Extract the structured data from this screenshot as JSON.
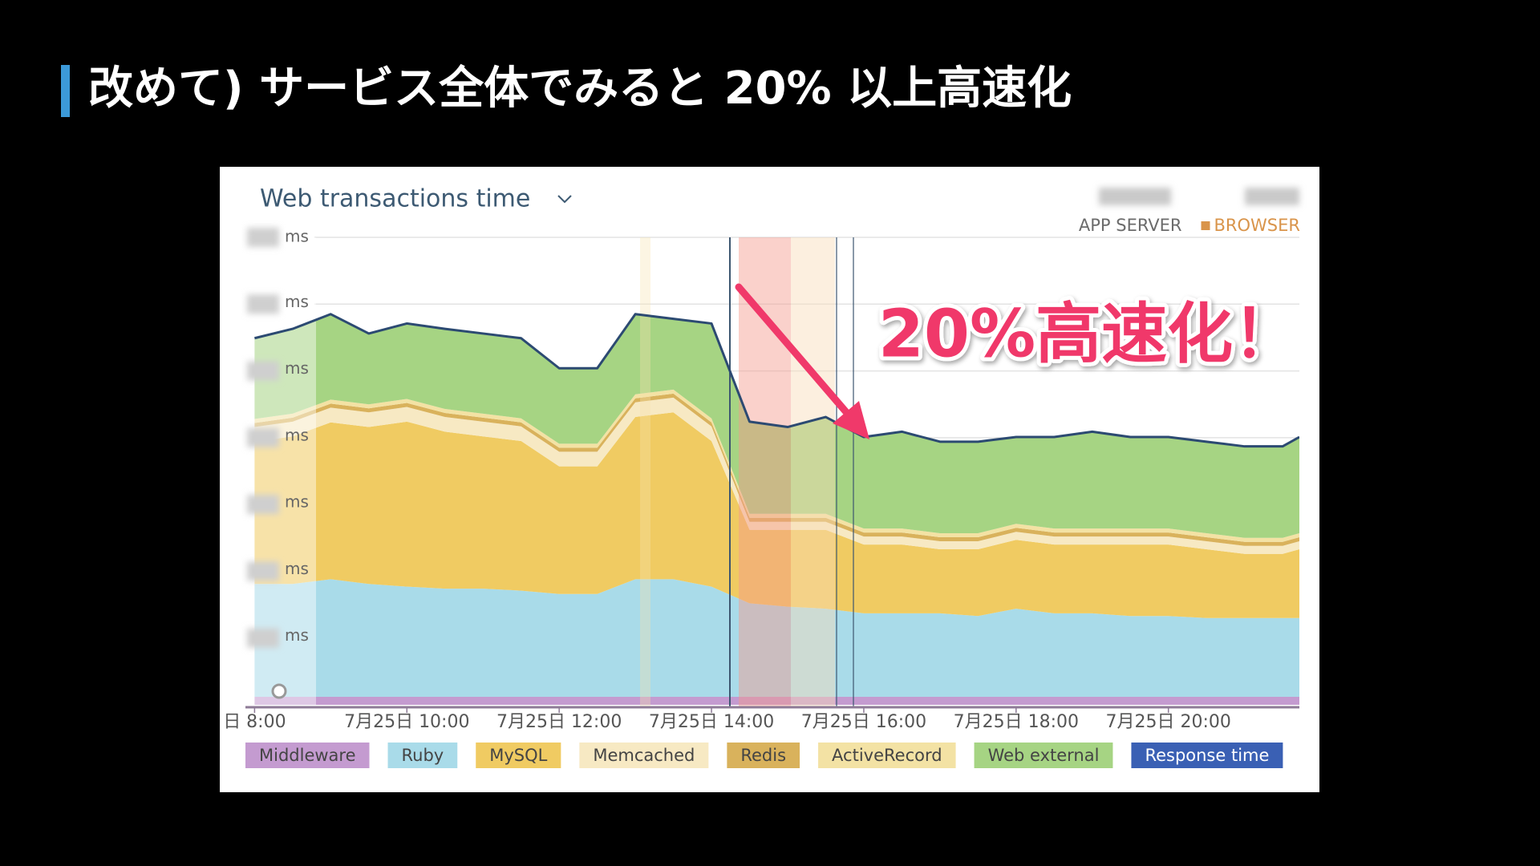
{
  "slide_title": "改めて) サービス全体でみると 20% 以上高速化",
  "chart_data": {
    "type": "stacked-area",
    "title": "Web transactions time",
    "header_labels": [
      "APP SERVER",
      "BROWSER"
    ],
    "header_colors": [
      "#6b6b6b",
      "#d9944a"
    ],
    "annotation": "20%高速化！",
    "annotation_color": "#f0396a",
    "x": [
      8,
      8.5,
      9,
      9.5,
      10,
      10.5,
      11,
      11.5,
      12,
      12.5,
      13,
      13.5,
      14,
      14.5,
      15,
      15.5,
      16,
      16.5,
      17,
      17.5,
      18,
      18.5,
      19,
      19.5,
      20,
      20.5,
      21,
      21.5,
      21.72
    ],
    "xlim": [
      7.88,
      21.72
    ],
    "xticks": [
      {
        "value": 8,
        "label": "日 8:00"
      },
      {
        "value": 10,
        "label": "7月25日 10:00"
      },
      {
        "value": 12,
        "label": "7月25日 12:00"
      },
      {
        "value": 14,
        "label": "7月25日 14:00"
      },
      {
        "value": 16,
        "label": "7月25日 16:00"
      },
      {
        "value": 18,
        "label": "7月25日 18:00"
      },
      {
        "value": 20,
        "label": "7月25日 20:00"
      }
    ],
    "ylim": [
      0,
      7
    ],
    "yticks": [
      {
        "value": 1,
        "label": "ms"
      },
      {
        "value": 2,
        "label": "ms"
      },
      {
        "value": 3,
        "label": "ms"
      },
      {
        "value": 4,
        "label": "ms"
      },
      {
        "value": 5,
        "label": "ms"
      },
      {
        "value": 6,
        "label": "ms"
      },
      {
        "value": 7,
        "label": "ms"
      }
    ],
    "grid": true,
    "series": [
      {
        "name": "Middleware",
        "type": "area",
        "color": "#c49bd0",
        "values": [
          0.12,
          0.12,
          0.12,
          0.12,
          0.12,
          0.12,
          0.12,
          0.12,
          0.12,
          0.12,
          0.12,
          0.12,
          0.12,
          0.12,
          0.12,
          0.12,
          0.12,
          0.12,
          0.12,
          0.12,
          0.12,
          0.12,
          0.12,
          0.12,
          0.12,
          0.12,
          0.12,
          0.12,
          0.12
        ]
      },
      {
        "name": "Ruby",
        "type": "area",
        "color": "#a9dbe9",
        "values": [
          1.69,
          1.69,
          1.76,
          1.69,
          1.65,
          1.62,
          1.62,
          1.59,
          1.54,
          1.54,
          1.76,
          1.76,
          1.65,
          1.4,
          1.35,
          1.32,
          1.25,
          1.25,
          1.25,
          1.21,
          1.32,
          1.25,
          1.25,
          1.21,
          1.21,
          1.18,
          1.18,
          1.18,
          1.18
        ]
      },
      {
        "name": "MySQL",
        "type": "area",
        "color": "#f0cb62",
        "values": [
          2.13,
          2.21,
          2.35,
          2.35,
          2.47,
          2.35,
          2.28,
          2.24,
          1.91,
          1.91,
          2.43,
          2.5,
          2.18,
          1.1,
          1.15,
          1.18,
          1.03,
          1.03,
          0.96,
          1.0,
          1.03,
          1.03,
          1.03,
          1.07,
          1.07,
          1.03,
          0.96,
          0.96,
          1.03
        ]
      },
      {
        "name": "Memcached",
        "type": "area",
        "color": "#f7e9c3",
        "values": [
          0.22,
          0.22,
          0.22,
          0.22,
          0.22,
          0.22,
          0.22,
          0.22,
          0.22,
          0.22,
          0.22,
          0.22,
          0.22,
          0.12,
          0.12,
          0.12,
          0.12,
          0.12,
          0.12,
          0.12,
          0.12,
          0.12,
          0.12,
          0.12,
          0.12,
          0.12,
          0.12,
          0.12,
          0.12
        ]
      },
      {
        "name": "Redis",
        "type": "area",
        "color": "#d9b25c",
        "values": [
          0.06,
          0.06,
          0.06,
          0.06,
          0.06,
          0.06,
          0.06,
          0.06,
          0.06,
          0.06,
          0.06,
          0.06,
          0.06,
          0.06,
          0.06,
          0.06,
          0.06,
          0.06,
          0.06,
          0.06,
          0.06,
          0.06,
          0.06,
          0.06,
          0.06,
          0.06,
          0.06,
          0.06,
          0.06
        ]
      },
      {
        "name": "ActiveRecord",
        "type": "area",
        "color": "#f3e2a4",
        "values": [
          0.06,
          0.06,
          0.06,
          0.06,
          0.06,
          0.06,
          0.06,
          0.06,
          0.06,
          0.06,
          0.06,
          0.06,
          0.06,
          0.06,
          0.06,
          0.06,
          0.06,
          0.06,
          0.06,
          0.06,
          0.06,
          0.06,
          0.06,
          0.06,
          0.06,
          0.06,
          0.06,
          0.06,
          0.06
        ]
      },
      {
        "name": "Web external",
        "type": "area",
        "color": "#a6d483",
        "values": [
          1.21,
          1.27,
          1.28,
          1.06,
          1.13,
          1.2,
          1.2,
          1.2,
          1.13,
          1.13,
          1.2,
          1.06,
          1.42,
          1.38,
          1.3,
          1.45,
          1.37,
          1.45,
          1.37,
          1.37,
          1.3,
          1.37,
          1.45,
          1.37,
          1.37,
          1.37,
          1.37,
          1.37,
          1.44
        ]
      },
      {
        "name": "Response time",
        "type": "line",
        "color": "#2c4a72",
        "legend_color": "#3a60b4",
        "values": [
          5.49,
          5.63,
          5.85,
          5.56,
          5.71,
          5.63,
          5.56,
          5.49,
          5.04,
          5.04,
          5.85,
          5.78,
          5.71,
          4.24,
          4.16,
          4.31,
          4.01,
          4.09,
          3.94,
          3.94,
          4.01,
          4.01,
          4.09,
          4.01,
          4.01,
          3.94,
          3.87,
          3.87,
          4.01
        ]
      }
    ]
  }
}
